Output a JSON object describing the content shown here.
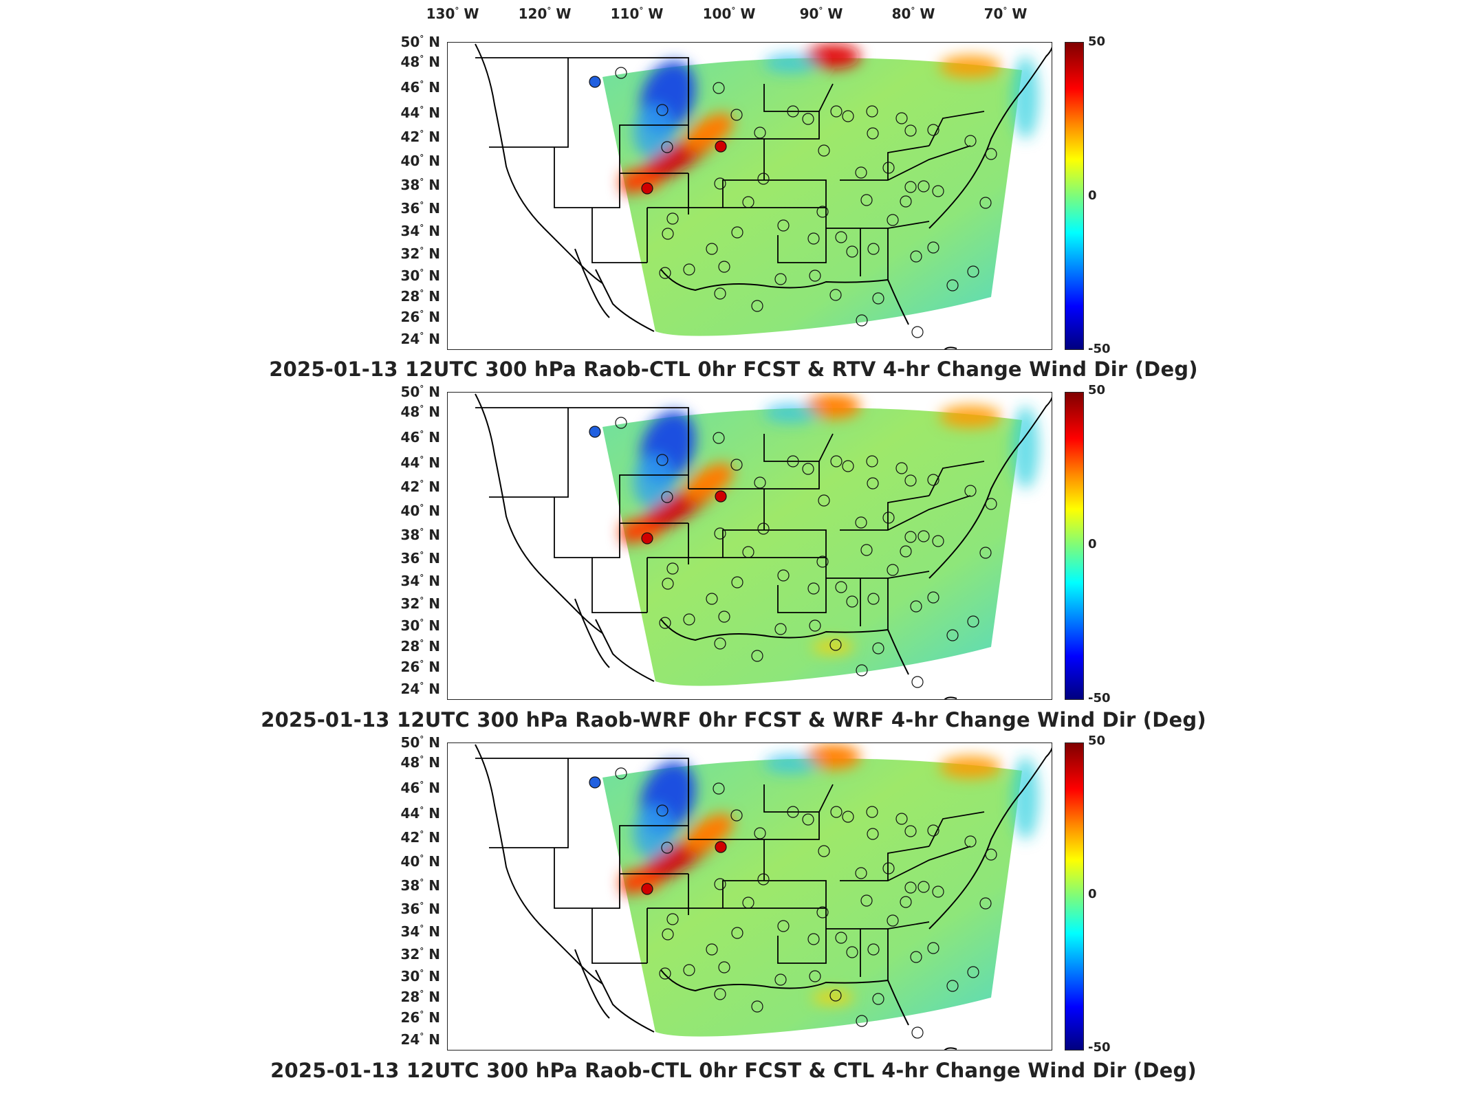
{
  "lon_labels": [
    {
      "deg": "130",
      "hemi": "W"
    },
    {
      "deg": "120",
      "hemi": "W"
    },
    {
      "deg": "110",
      "hemi": "W"
    },
    {
      "deg": "100",
      "hemi": "W"
    },
    {
      "deg": "90",
      "hemi": "W"
    },
    {
      "deg": "80",
      "hemi": "W"
    },
    {
      "deg": "70",
      "hemi": "W"
    }
  ],
  "lat_labels": [
    "50",
    "48",
    "46",
    "44",
    "42",
    "40",
    "38",
    "36",
    "34",
    "32",
    "30",
    "28",
    "26",
    "24"
  ],
  "lat_hemi": "N",
  "colorbar": {
    "max": "50",
    "mid": "0",
    "min": "-50"
  },
  "panels": [
    {
      "title": "2025-01-13 12UTC 300 hPa Raob-CTL 0hr FCST & RTV 4-hr Change Wind Dir (Deg)"
    },
    {
      "title": "2025-01-13 12UTC 300 hPa Raob-WRF 0hr FCST & WRF 4-hr Change Wind Dir (Deg)"
    },
    {
      "title": "2025-01-13 12UTC 300 hPa Raob-CTL 0hr FCST & CTL 4-hr Change Wind Dir (Deg)"
    }
  ],
  "colors": {
    "field_base": "#8ee67a",
    "positive": "#c00000",
    "negative": "#1040d0",
    "outline": "#000000"
  }
}
